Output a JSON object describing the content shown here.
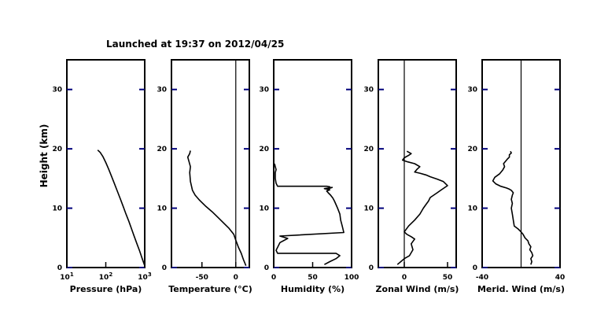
{
  "chart_data": {
    "type": "line",
    "title": "Launched at 19:37 on 2012/04/25",
    "ylabel": "Height (km)",
    "ylim": [
      0,
      35
    ],
    "yticks": [
      0,
      10,
      20,
      30
    ],
    "series_color": "#000000",
    "axis_color": "#000000",
    "tick_color": "#00007a",
    "panels": [
      {
        "id": "pressure",
        "xlabel": "Pressure (hPa)",
        "xscale": "log",
        "xlim": [
          10,
          1000
        ],
        "xticks": [
          {
            "value": 10,
            "base": "10",
            "exp": "1"
          },
          {
            "value": 100,
            "base": "10",
            "exp": "2"
          },
          {
            "value": 1000,
            "base": "10",
            "exp": "3"
          }
        ],
        "zero_line": null,
        "series": [
          {
            "x": [
              1000,
              860,
              740,
              630,
              540,
              460,
              390,
              330,
              280,
              235,
              200,
              165,
              140,
              118,
              100,
              84,
              72,
              62
            ],
            "y": [
              0.3,
              1.5,
              2.8,
              4.0,
              5.2,
              6.5,
              7.8,
              9.0,
              10.3,
              11.6,
              12.8,
              14.2,
              15.4,
              16.6,
              17.7,
              18.7,
              19.4,
              19.8
            ]
          }
        ]
      },
      {
        "id": "temperature",
        "xlabel": "Temperature (°C)",
        "xscale": "linear",
        "xlim": [
          -95,
          20
        ],
        "xticks": [
          {
            "value": -50,
            "label": "-50"
          },
          {
            "value": 0,
            "label": "0"
          }
        ],
        "zero_line": 0,
        "series": [
          {
            "x": [
              15,
              11,
              8,
              4,
              0,
              -3,
              -10,
              -17,
              -26,
              -35,
              -45,
              -54,
              -60,
              -64,
              -67,
              -68,
              -67,
              -69,
              -71,
              -68,
              -67
            ],
            "y": [
              0.3,
              1.4,
              2.4,
              3.4,
              4.6,
              5.6,
              6.6,
              7.4,
              8.4,
              9.4,
              10.4,
              11.4,
              12.2,
              13.0,
              14.5,
              16.0,
              17.0,
              17.8,
              18.6,
              19.2,
              19.7
            ]
          }
        ]
      },
      {
        "id": "humidity",
        "xlabel": "Humidity (%)",
        "xscale": "linear",
        "xlim": [
          0,
          100
        ],
        "xticks": [
          {
            "value": 0,
            "label": "0"
          },
          {
            "value": 50,
            "label": "50"
          },
          {
            "value": 100,
            "label": "100"
          }
        ],
        "zero_line": null,
        "series": [
          {
            "x": [
              65,
              72,
              80,
              85,
              80,
              5,
              3,
              5,
              8,
              18,
              8,
              90,
              88,
              86,
              85,
              82,
              80,
              78,
              76,
              73,
              70,
              68,
              72,
              65,
              75,
              70,
              72,
              68,
              5,
              3,
              2,
              2,
              2,
              3,
              2,
              1
            ],
            "y": [
              0.5,
              1.0,
              1.5,
              2.0,
              2.4,
              2.4,
              2.9,
              3.4,
              4.2,
              4.9,
              5.3,
              5.9,
              7.0,
              8.0,
              9.0,
              10.0,
              10.6,
              11.2,
              11.7,
              12.2,
              12.6,
              12.9,
              13.1,
              13.3,
              13.5,
              13.3,
              13.6,
              13.7,
              13.7,
              14.2,
              15.0,
              15.5,
              16.0,
              16.5,
              17.0,
              17.5
            ]
          }
        ]
      },
      {
        "id": "zonal-wind",
        "xlabel": "Zonal Wind (m/s)",
        "xscale": "linear",
        "xlim": [
          -30,
          60
        ],
        "xticks": [
          {
            "value": 0,
            "label": "0"
          },
          {
            "value": 50,
            "label": "50"
          }
        ],
        "zero_line": 0,
        "series": [
          {
            "x": [
              -8,
              -4,
              0,
              6,
              10,
              8,
              12,
              8,
              3,
              0,
              5,
              12,
              18,
              22,
              25,
              28,
              30,
              34,
              38,
              42,
              50,
              45,
              38,
              30,
              25,
              18,
              12,
              15,
              18,
              12,
              4,
              -2,
              0,
              5,
              8,
              3
            ],
            "y": [
              0.5,
              1.0,
              1.5,
              2.0,
              3.0,
              4.0,
              4.8,
              5.2,
              5.6,
              6.0,
              7.0,
              8.0,
              9.0,
              10.0,
              10.6,
              11.2,
              11.8,
              12.2,
              12.6,
              13.0,
              13.8,
              14.5,
              14.9,
              15.3,
              15.6,
              15.9,
              16.1,
              16.6,
              17.0,
              17.5,
              17.8,
              18.1,
              18.5,
              18.9,
              19.2,
              19.6
            ]
          }
        ]
      },
      {
        "id": "meridional-wind",
        "xlabel": "Merid. Wind (m/s)",
        "xscale": "linear",
        "xlim": [
          -40,
          40
        ],
        "xticks": [
          {
            "value": -40,
            "label": "-40"
          },
          {
            "value": 40,
            "label": "40"
          }
        ],
        "zero_line": 0,
        "series": [
          {
            "x": [
              10,
              11,
              10,
              12,
              11,
              9,
              10,
              8,
              7,
              4,
              2,
              0,
              -3,
              -7,
              -8,
              -9,
              -10,
              -9,
              -10,
              -9,
              -8,
              -10,
              -12,
              -15,
              -21,
              -26,
              -29,
              -27,
              -22,
              -19,
              -17,
              -18,
              -16,
              -14,
              -12,
              -12,
              -10,
              -11
            ],
            "y": [
              0.5,
              1.0,
              1.5,
              2.0,
              2.5,
              3.0,
              3.5,
              4.0,
              4.5,
              5.0,
              5.6,
              6.0,
              6.5,
              7.0,
              8.0,
              9.0,
              10.0,
              10.8,
              11.5,
              12.2,
              12.6,
              13.0,
              13.2,
              13.4,
              13.7,
              14.1,
              14.6,
              15.2,
              15.8,
              16.4,
              17.0,
              17.5,
              17.9,
              18.3,
              18.6,
              19.0,
              19.3,
              19.6
            ]
          }
        ]
      }
    ]
  }
}
